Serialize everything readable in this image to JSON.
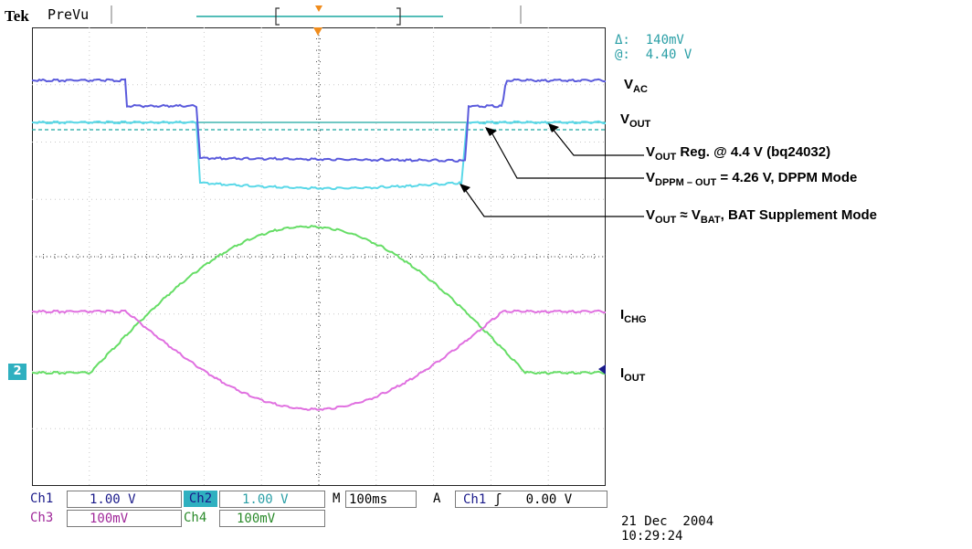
{
  "header": {
    "brand": "Tek",
    "mode": "PreVu"
  },
  "readout": {
    "delta_label": "Δ:",
    "delta_value": "140mV",
    "at_label": "@:",
    "at_value": "4.40 V"
  },
  "annotations": {
    "vac": {
      "main": "V",
      "sub": "AC"
    },
    "vout": {
      "main": "V",
      "sub": "OUT"
    },
    "vout_reg": {
      "pre": "V",
      "sub": "OUT",
      "post": " Reg. @ 4.4 V (bq24032)"
    },
    "vdppm": {
      "pre": "V",
      "sub": "DPPM – OUT",
      "post": " = 4.26 V, DPPM Mode"
    },
    "vbat": {
      "pre": "V",
      "sub1": "OUT",
      "mid": " ≈ V",
      "sub2": "BAT",
      "post": ", BAT Supplement Mode"
    },
    "ichg": {
      "main": "I",
      "sub": "CHG"
    },
    "iout": {
      "main": "I",
      "sub": "OUT"
    }
  },
  "channel_marker": "2",
  "settings": {
    "ch1_label": "Ch1",
    "ch1_value": "1.00 V",
    "ch2_label": "Ch2",
    "ch2_value": "1.00 V",
    "time_label": "M",
    "time_value": "100ms",
    "trig_label": "A",
    "trig_src": "Ch1",
    "trig_slope": "ʃ",
    "trig_level": "0.00 V",
    "ch3_label": "Ch3",
    "ch3_value": "100mV",
    "ch4_label": "Ch4",
    "ch4_value": "100mV"
  },
  "datetime": {
    "date": "21 Dec  2004",
    "time": "10:29:24"
  },
  "colors": {
    "ch1": "#5a5adc",
    "ch2": "#5ad8e8",
    "cursor": "#1aa7a0",
    "green": "#66dd66",
    "magenta": "#e070e0",
    "ch2_badge": "#2fb0c0"
  }
}
